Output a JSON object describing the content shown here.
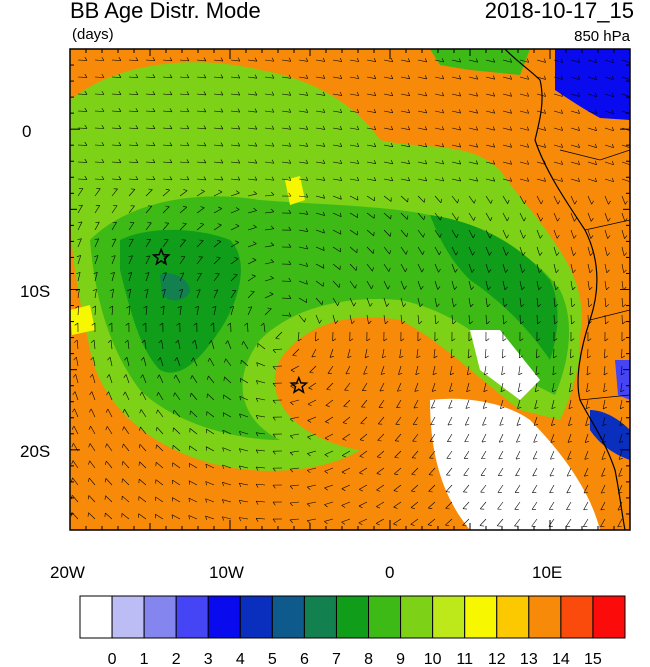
{
  "header": {
    "title": "BB Age Distr. Mode",
    "units": "(days)",
    "datetime": "2018-10-17_15",
    "level": "850 hPa"
  },
  "axes": {
    "lat_labels": [
      "0",
      "10S",
      "20S"
    ],
    "lon_labels": [
      "20W",
      "10W",
      "0",
      "10E"
    ],
    "lon_range": [
      -20,
      15
    ],
    "lat_range": [
      -25,
      5
    ]
  },
  "colorbar": {
    "labels": [
      "0",
      "1",
      "2",
      "3",
      "4",
      "5",
      "6",
      "7",
      "8",
      "9",
      "10",
      "11",
      "12",
      "13",
      "14",
      "15"
    ],
    "colors": [
      "#ffffff",
      "#bdbdf5",
      "#8585f0",
      "#4545f5",
      "#0a0aee",
      "#0a2fbe",
      "#0f5a8c",
      "#138050",
      "#109d19",
      "#3dba16",
      "#7dd116",
      "#bde81a",
      "#f7f700",
      "#fcc800",
      "#f88a0a",
      "#fb4b0c",
      "#fc0b0b"
    ]
  },
  "markers": [
    {
      "name": "star-marker",
      "lon": -14.3,
      "lat": -8
    },
    {
      "name": "star-marker",
      "lon": -5.7,
      "lat": -16
    }
  ]
}
